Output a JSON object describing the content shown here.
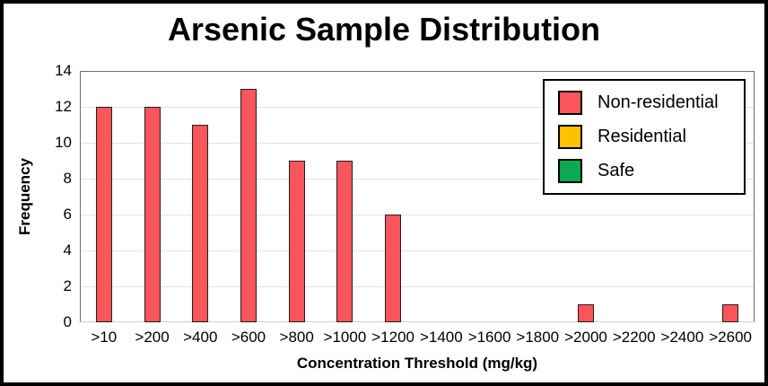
{
  "chart_data": {
    "type": "bar",
    "title": "Arsenic Sample Distribution",
    "xlabel": "Concentration Threshold (mg/kg)",
    "ylabel": "Frequency",
    "categories": [
      ">10",
      ">200",
      ">400",
      ">600",
      ">800",
      ">1000",
      ">1200",
      ">1400",
      ">1600",
      ">1800",
      ">2000",
      ">2200",
      ">2400",
      ">2600"
    ],
    "series": [
      {
        "name": "Non-residential",
        "color": "#F9555B",
        "values": [
          12,
          12,
          11,
          13,
          9,
          9,
          6,
          0,
          0,
          0,
          1,
          0,
          0,
          1
        ]
      }
    ],
    "legend": [
      {
        "label": "Non-residential",
        "color": "#F9555B"
      },
      {
        "label": "Residential",
        "color": "#FFC000"
      },
      {
        "label": "Safe",
        "color": "#0CA853"
      }
    ],
    "ylim": [
      0,
      14
    ],
    "yticks": [
      0,
      2,
      4,
      6,
      8,
      10,
      12,
      14
    ],
    "grid": true,
    "legend_position": "top-right",
    "bar_border_color": "#1f1f1f"
  }
}
